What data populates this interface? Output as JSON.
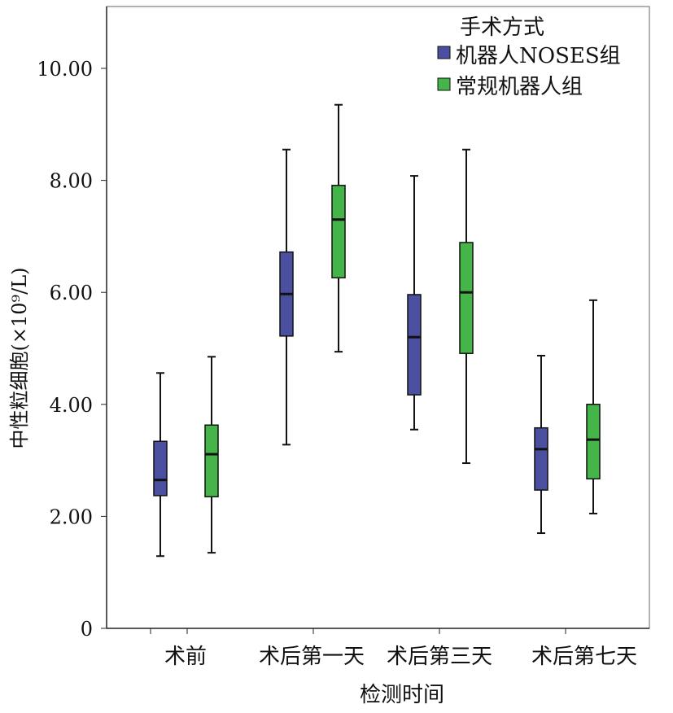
{
  "chart_data": {
    "type": "boxplot",
    "title": "",
    "xlabel": "检测时间",
    "ylabel": "中性粒细胞(×10⁹/L)",
    "ylim": [
      0,
      11.07
    ],
    "yticks": [
      0,
      2,
      4,
      6,
      8,
      10
    ],
    "ytick_labels": [
      "0",
      "2.00",
      "4.00",
      "6.00",
      "8.00",
      "10.00"
    ],
    "categories": [
      "术前",
      "术后第一天",
      "术后第三天",
      "术后第七天"
    ],
    "legend": {
      "title": "手术方式",
      "placement": "top-right"
    },
    "series": [
      {
        "name": "机器人NOSES组",
        "color": "#4b4f9f",
        "boxes": [
          {
            "whisker_low": 1.29,
            "q1": 2.37,
            "median": 2.65,
            "q3": 3.34,
            "whisker_high": 4.56
          },
          {
            "whisker_low": 3.28,
            "q1": 5.22,
            "median": 5.97,
            "q3": 6.72,
            "whisker_high": 8.55
          },
          {
            "whisker_low": 3.55,
            "q1": 4.17,
            "median": 5.2,
            "q3": 5.96,
            "whisker_high": 8.08
          },
          {
            "whisker_low": 1.7,
            "q1": 2.47,
            "median": 3.2,
            "q3": 3.58,
            "whisker_high": 4.87
          }
        ]
      },
      {
        "name": "常规机器人组",
        "color": "#45b54a",
        "boxes": [
          {
            "whisker_low": 1.35,
            "q1": 2.35,
            "median": 3.11,
            "q3": 3.63,
            "whisker_high": 4.85
          },
          {
            "whisker_low": 4.94,
            "q1": 6.26,
            "median": 7.3,
            "q3": 7.91,
            "whisker_high": 9.35
          },
          {
            "whisker_low": 2.95,
            "q1": 4.91,
            "median": 6.0,
            "q3": 6.89,
            "whisker_high": 8.55
          },
          {
            "whisker_low": 2.05,
            "q1": 2.67,
            "median": 3.37,
            "q3": 4.0,
            "whisker_high": 5.86
          }
        ]
      }
    ]
  }
}
